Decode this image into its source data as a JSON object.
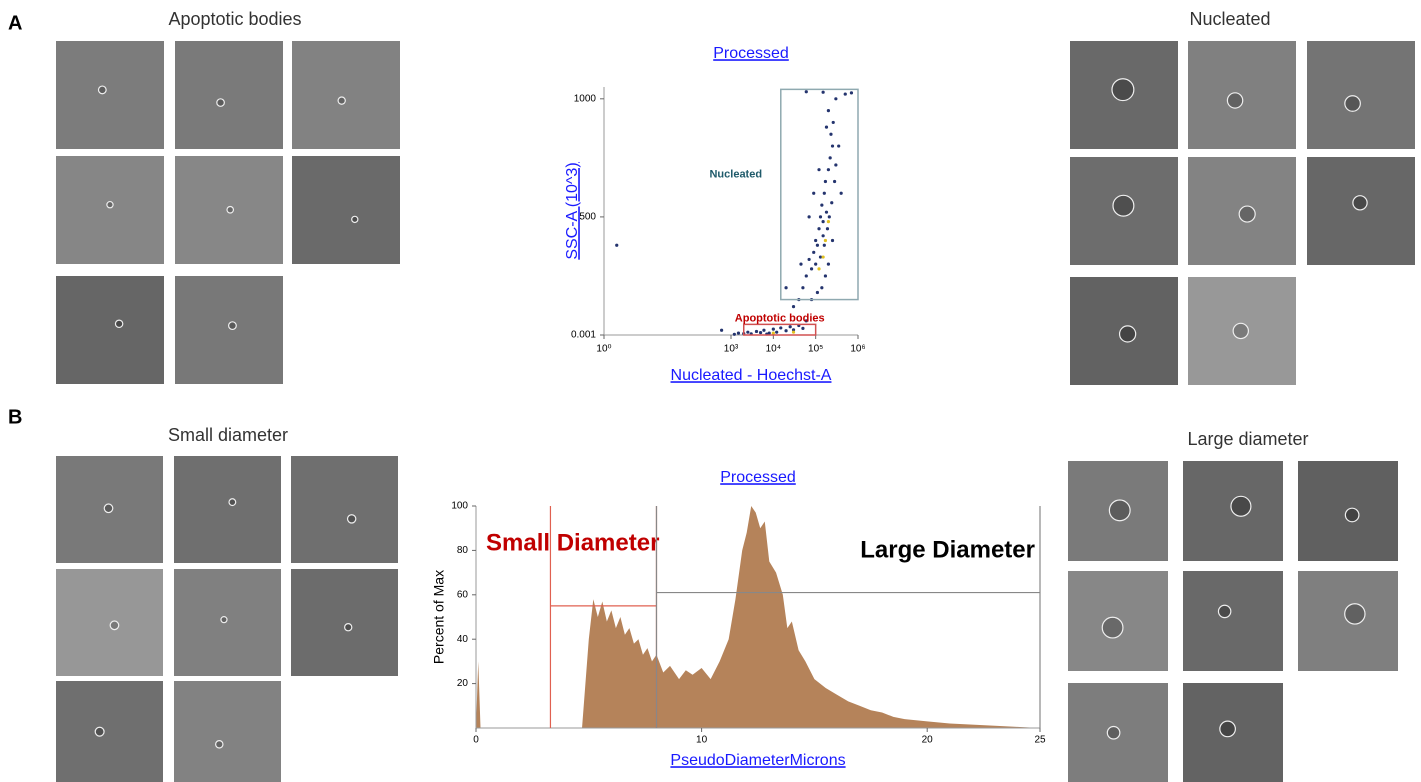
{
  "panel_labels": [
    "A",
    "B"
  ],
  "image_groups": [
    {
      "title": "Apoptotic bodies"
    },
    {
      "title": "Nucleated"
    },
    {
      "title": "Small diameter"
    },
    {
      "title": "Large diameter"
    }
  ],
  "chart_data": [
    {
      "type": "scatter",
      "title": "Processed",
      "x_label": "Nucleated - Hoechst-A",
      "y_label": "SSC-A (10^3)",
      "x_scale": "log",
      "xlim": [
        1,
        1000000
      ],
      "ylim": [
        0,
        1050
      ],
      "xticks": [
        {
          "value": 1,
          "label": "10⁰"
        },
        {
          "value": 1000,
          "label": "10³"
        },
        {
          "value": 10000,
          "label": "10⁴"
        },
        {
          "value": 100000,
          "label": "10⁵"
        },
        {
          "value": 1000000,
          "label": "10⁶"
        }
      ],
      "yticks": [
        0.001,
        500,
        1000
      ],
      "series": [
        {
          "color": "#24346e",
          "x": [
            1500,
            2500,
            3000,
            4000,
            5000,
            6000,
            8000,
            10000,
            12000,
            15000,
            20000,
            25000,
            30000,
            40000,
            50000,
            60000,
            1200,
            2000,
            7000,
            600,
            40000,
            50000,
            60000,
            45000,
            70000,
            80000,
            90000,
            100000,
            110000,
            120000,
            130000,
            140000,
            150000,
            160000,
            170000,
            180000,
            200000,
            220000,
            250000,
            150000,
            100000,
            130000,
            160000,
            190000,
            210000,
            240000,
            280000,
            300000,
            260000,
            230000,
            200000,
            180000,
            300000,
            120000,
            90000,
            70000,
            350000,
            400000,
            200000,
            250000,
            170000,
            140000,
            110000,
            80000,
            30000,
            20000,
            500000,
            700000,
            60000,
            150000,
            2
          ],
          "values": [
            8,
            12,
            5,
            15,
            10,
            20,
            8,
            25,
            12,
            30,
            18,
            35,
            22,
            40,
            28,
            60,
            3,
            6,
            4,
            20,
            150,
            200,
            250,
            300,
            320,
            280,
            350,
            400,
            380,
            450,
            500,
            550,
            480,
            600,
            650,
            520,
            700,
            750,
            800,
            420,
            300,
            330,
            380,
            450,
            500,
            560,
            650,
            720,
            900,
            850,
            950,
            880,
            1000,
            700,
            600,
            500,
            800,
            600,
            300,
            400,
            250,
            200,
            180,
            150,
            120,
            200,
            1020,
            1025,
            1030,
            1028,
            380
          ]
        },
        {
          "color": "#e0c020",
          "x": [
            150000,
            170000,
            200000,
            10000,
            30000,
            120000
          ],
          "values": [
            330,
            400,
            480,
            8,
            12,
            280
          ]
        }
      ],
      "gates": [
        {
          "name": "Nucleated",
          "color": "#1f5a6a",
          "border": "#8fa9b0",
          "x": [
            15000,
            1000000
          ],
          "y": [
            150,
            1040
          ]
        },
        {
          "name": "Apoptotic bodies",
          "color": "#c00000",
          "border": "#d05050",
          "x": [
            2000,
            100000
          ],
          "y": [
            0,
            45
          ]
        }
      ]
    },
    {
      "type": "area",
      "title": "Processed",
      "x_label": "PseudoDiameterMicrons",
      "y_label": "Percent of Max",
      "xlim": [
        0,
        25
      ],
      "ylim": [
        0,
        100
      ],
      "xticks": [
        0,
        10,
        20,
        25
      ],
      "yticks": [
        20,
        40,
        60,
        80,
        100
      ],
      "color": "#b5835a",
      "x": [
        0,
        0.1,
        0.2,
        4.7,
        5.0,
        5.2,
        5.4,
        5.6,
        5.8,
        6.0,
        6.2,
        6.4,
        6.6,
        6.8,
        7.0,
        7.2,
        7.4,
        7.6,
        7.8,
        8.0,
        8.3,
        8.6,
        9.0,
        9.3,
        9.6,
        10,
        10.4,
        10.8,
        11.2,
        11.5,
        11.8,
        12,
        12.2,
        12.4,
        12.6,
        12.8,
        13,
        13.3,
        13.6,
        13.8,
        14,
        14.3,
        14.6,
        15,
        15.5,
        16,
        16.5,
        17,
        17.5,
        18,
        18.5,
        19,
        20,
        21,
        22,
        23,
        24,
        25
      ],
      "values": [
        0,
        30,
        0,
        0,
        40,
        58,
        50,
        57,
        48,
        53,
        45,
        50,
        42,
        45,
        38,
        40,
        33,
        36,
        30,
        33,
        25,
        28,
        22,
        26,
        24,
        27,
        22,
        30,
        40,
        58,
        80,
        88,
        100,
        97,
        90,
        93,
        75,
        70,
        60,
        45,
        48,
        35,
        30,
        22,
        18,
        15,
        12,
        10,
        8,
        7,
        5,
        4,
        3,
        2,
        1.5,
        1,
        0.5,
        0
      ],
      "gates": [
        {
          "name": "Small Diameter",
          "color": "#c00000",
          "border": "#e06050",
          "x": [
            3.3,
            8
          ],
          "y": 55
        },
        {
          "name": "Large Diameter",
          "color": "#000000",
          "border": "#888888",
          "x": [
            8,
            25
          ],
          "y": 61
        }
      ]
    }
  ]
}
